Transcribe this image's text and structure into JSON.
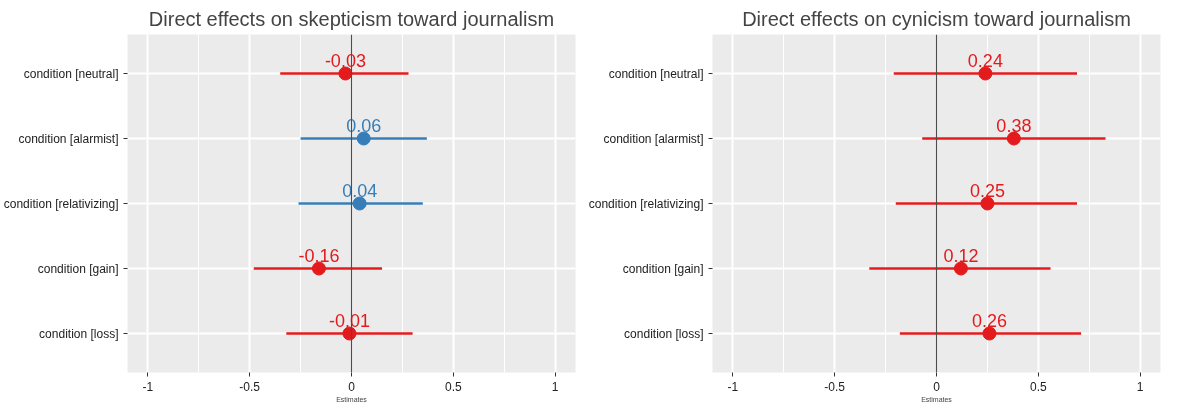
{
  "chart_data": [
    {
      "type": "scatter",
      "orientation": "horizontal",
      "title": "Direct effects on skepticism toward journalism",
      "xlabel": "Estimates",
      "categories": [
        "condition [neutral]",
        "condition [alarmist]",
        "condition [relativizing]",
        "condition [gain]",
        "condition [loss]"
      ],
      "values": [
        -0.03,
        0.06,
        0.04,
        -0.16,
        -0.01
      ],
      "errors": [
        [
          -0.35,
          0.28
        ],
        [
          -0.25,
          0.37
        ],
        [
          -0.26,
          0.35
        ],
        [
          -0.48,
          0.15
        ],
        [
          -0.32,
          0.3
        ]
      ],
      "colors": [
        "#e41a1c",
        "#377eb8",
        "#377eb8",
        "#e41a1c",
        "#e41a1c"
      ],
      "xlim": [
        -1.1,
        1.1
      ],
      "xticks": [
        -1,
        -0.5,
        0,
        0.5,
        1
      ],
      "grid": true,
      "data_labels": true,
      "marker": "circle",
      "ref_lines": [
        {
          "axis": "x",
          "value": 0,
          "color": "#4d4d4d"
        }
      ]
    },
    {
      "type": "scatter",
      "orientation": "horizontal",
      "title": "Direct effects on cynicism toward journalism",
      "xlabel": "Estimates",
      "categories": [
        "condition [neutral]",
        "condition [alarmist]",
        "condition [relativizing]",
        "condition [gain]",
        "condition [loss]"
      ],
      "values": [
        0.24,
        0.38,
        0.25,
        0.12,
        0.26
      ],
      "errors": [
        [
          -0.21,
          0.69
        ],
        [
          -0.07,
          0.83
        ],
        [
          -0.2,
          0.69
        ],
        [
          -0.33,
          0.56
        ],
        [
          -0.18,
          0.71
        ]
      ],
      "colors": [
        "#e41a1c",
        "#e41a1c",
        "#e41a1c",
        "#e41a1c",
        "#e41a1c"
      ],
      "xlim": [
        -1.1,
        1.1
      ],
      "xticks": [
        -1,
        -0.5,
        0,
        0.5,
        1
      ],
      "grid": true,
      "data_labels": true,
      "marker": "circle",
      "ref_lines": [
        {
          "axis": "x",
          "value": 0,
          "color": "#4d4d4d"
        }
      ]
    }
  ]
}
